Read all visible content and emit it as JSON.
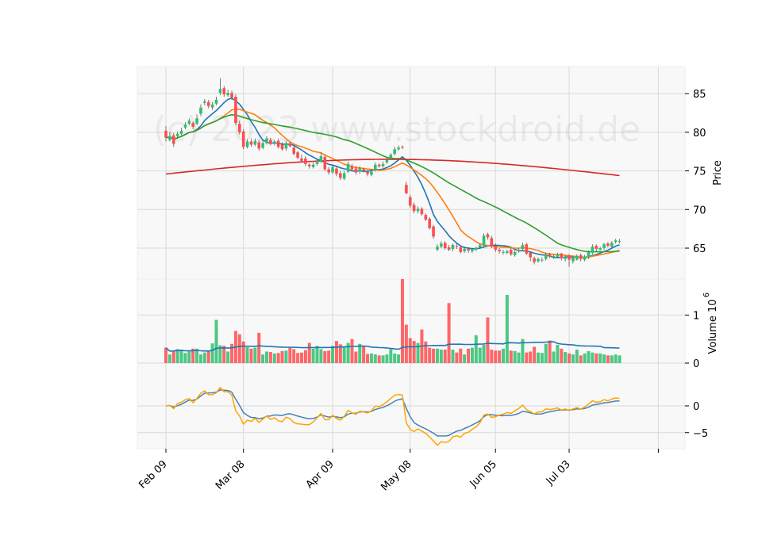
{
  "chart_data": {
    "type": "candlestick",
    "watermark": "(c) 2023 www.stockdroid.de",
    "price_axis": {
      "label": "Price",
      "ylim": [
        61,
        88.5
      ],
      "ticks": [
        65,
        70,
        75,
        80,
        85
      ]
    },
    "volume_axis": {
      "label": "Volume  10",
      "exponent": "6",
      "ylim": [
        0,
        1.75
      ],
      "ticks": [
        0,
        1
      ]
    },
    "indicator_axis": {
      "ylim": [
        -8,
        8
      ],
      "ticks": [
        -5,
        0
      ]
    },
    "x_ticks": [
      {
        "index": 0,
        "label": "Feb 09"
      },
      {
        "index": 20,
        "label": "Mar 08"
      },
      {
        "index": 43,
        "label": "Apr 09"
      },
      {
        "index": 63,
        "label": "May 08"
      },
      {
        "index": 85,
        "label": "Jun 05"
      },
      {
        "index": 104,
        "label": "Jul 03"
      },
      {
        "index": 127,
        "label": ""
      }
    ],
    "colors": {
      "up": "#2fbf71",
      "down": "#ff4d4f",
      "ma_fast": "#1f77b4",
      "ma_mid": "#ff7f0e",
      "ma_slow": "#2ca02c",
      "ma_long": "#d62728",
      "vol_ma": "#1f77b4",
      "ind_a": "#4682b4",
      "ind_b": "#ffa500",
      "panel_bg": "#f8f8f8",
      "grid": "#d9d9d9"
    },
    "closes": [
      79.3,
      79.5,
      78.5,
      79.8,
      80.2,
      81.0,
      81.5,
      80.7,
      81.8,
      83.2,
      84.0,
      83.4,
      83.6,
      84.2,
      85.6,
      84.9,
      85.1,
      84.5,
      81.2,
      80.0,
      78.1,
      78.8,
      78.4,
      78.9,
      77.9,
      78.6,
      79.2,
      78.5,
      78.8,
      78.1,
      77.8,
      78.6,
      78.2,
      77.2,
      76.7,
      76.3,
      75.9,
      75.6,
      75.8,
      76.3,
      76.9,
      75.2,
      74.8,
      75.5,
      74.6,
      74.1,
      74.7,
      75.9,
      75.2,
      74.8,
      75.3,
      75.0,
      74.6,
      74.9,
      75.8,
      75.6,
      75.9,
      76.4,
      77.1,
      77.8,
      78.0,
      78.0,
      72.1,
      70.5,
      69.8,
      70.1,
      69.4,
      68.7,
      67.6,
      66.5,
      65.2,
      65.6,
      65.0,
      64.8,
      65.4,
      65.2,
      64.5,
      64.9,
      64.7,
      64.9,
      65.0,
      65.4,
      66.6,
      66.4,
      65.2,
      64.8,
      64.6,
      64.5,
      64.6,
      64.2,
      64.5,
      64.8,
      65.4,
      64.3,
      63.8,
      63.2,
      63.6,
      63.5,
      64.1,
      63.9,
      64.0,
      64.2,
      63.7,
      63.9,
      63.5,
      63.8,
      64.0,
      63.6,
      63.9,
      64.5,
      65.2,
      64.9,
      65.0,
      65.5,
      65.3,
      65.7,
      66.0,
      65.9
    ],
    "opens": [
      80.2,
      79.0,
      79.6,
      79.5,
      79.8,
      80.6,
      81.1,
      81.2,
      81.1,
      82.4,
      83.8,
      83.9,
      83.2,
      83.7,
      85.1,
      85.7,
      84.8,
      85.1,
      84.6,
      81.1,
      80.1,
      78.1,
      78.8,
      78.4,
      78.7,
      78.0,
      78.6,
      79.0,
      78.6,
      78.9,
      78.4,
      77.9,
      78.5,
      78.0,
      77.4,
      76.6,
      76.6,
      75.8,
      75.5,
      75.9,
      76.2,
      76.8,
      75.2,
      74.8,
      75.3,
      74.7,
      74.0,
      74.9,
      75.6,
      75.3,
      74.9,
      75.2,
      74.9,
      74.5,
      75.1,
      75.8,
      75.6,
      76.1,
      76.6,
      77.2,
      77.8,
      78.1,
      73.2,
      71.6,
      70.6,
      69.8,
      70.1,
      69.3,
      68.8,
      67.8,
      64.8,
      65.2,
      65.7,
      65.1,
      64.9,
      65.3,
      65.1,
      64.6,
      64.9,
      64.6,
      64.8,
      65.1,
      65.3,
      66.8,
      66.3,
      65.3,
      64.8,
      64.5,
      64.4,
      64.8,
      64.1,
      64.6,
      64.9,
      65.5,
      64.4,
      63.7,
      63.3,
      63.5,
      63.6,
      64.2,
      63.8,
      63.9,
      64.3,
      63.6,
      64.0,
      63.3,
      63.5,
      64.1,
      63.5,
      63.8,
      64.4,
      65.3,
      64.8,
      65.0,
      65.6,
      65.2,
      65.8,
      65.8
    ],
    "highs": [
      80.8,
      80.0,
      79.9,
      80.1,
      80.6,
      81.3,
      81.8,
      81.4,
      82.3,
      83.6,
      84.3,
      84.2,
      83.9,
      84.6,
      87.0,
      86.0,
      85.5,
      85.4,
      84.9,
      81.5,
      80.4,
      79.1,
      79.2,
      79.2,
      79.0,
      78.9,
      79.5,
      79.3,
      79.0,
      79.2,
      78.7,
      78.9,
      78.8,
      78.3,
      77.6,
      77.1,
      76.9,
      76.0,
      76.1,
      76.6,
      77.4,
      77.1,
      75.5,
      75.8,
      75.6,
      75.0,
      75.0,
      76.2,
      75.9,
      75.6,
      75.6,
      75.4,
      75.1,
      75.2,
      76.1,
      76.0,
      76.2,
      76.7,
      77.3,
      78.1,
      78.3,
      78.3,
      73.6,
      71.9,
      70.9,
      70.4,
      70.3,
      69.5,
      69.0,
      68.0,
      65.5,
      65.9,
      65.9,
      65.4,
      65.6,
      65.6,
      65.3,
      65.2,
      65.1,
      65.0,
      65.2,
      65.6,
      66.9,
      67.0,
      66.6,
      65.6,
      65.0,
      64.8,
      64.8,
      65.0,
      64.7,
      65.0,
      65.7,
      65.7,
      64.6,
      63.9,
      63.8,
      63.8,
      64.4,
      64.4,
      64.2,
      64.4,
      64.4,
      64.1,
      64.2,
      63.9,
      64.2,
      64.3,
      64.1,
      64.7,
      65.5,
      65.5,
      65.2,
      65.7,
      65.8,
      65.9,
      66.2,
      66.2
    ],
    "lows": [
      78.8,
      78.8,
      78.1,
      79.3,
      79.6,
      80.4,
      80.9,
      80.4,
      80.9,
      82.1,
      83.5,
      83.1,
      82.9,
      83.5,
      84.8,
      84.6,
      84.6,
      84.2,
      80.9,
      79.7,
      77.8,
      77.9,
      78.1,
      78.2,
      77.6,
      77.8,
      78.4,
      78.3,
      78.3,
      77.9,
      77.6,
      77.6,
      78.0,
      77.0,
      76.5,
      76.1,
      75.6,
      75.3,
      75.3,
      75.7,
      76.0,
      75.0,
      74.5,
      74.6,
      74.3,
      73.8,
      73.8,
      74.7,
      75.0,
      74.5,
      74.6,
      74.8,
      74.3,
      74.3,
      74.9,
      75.4,
      75.4,
      75.9,
      76.5,
      77.0,
      77.6,
      77.8,
      72.0,
      70.2,
      69.5,
      69.5,
      69.2,
      68.5,
      67.4,
      66.2,
      64.6,
      65.0,
      64.8,
      64.6,
      64.6,
      64.9,
      64.3,
      64.4,
      64.4,
      64.4,
      64.6,
      64.9,
      65.1,
      66.1,
      65.0,
      64.5,
      64.3,
      64.2,
      64.2,
      64.0,
      63.9,
      64.4,
      64.7,
      64.1,
      63.3,
      62.9,
      63.1,
      63.2,
      63.4,
      63.7,
      63.6,
      63.7,
      63.4,
      63.3,
      62.6,
      63.0,
      63.4,
      63.3,
      63.3,
      63.6,
      64.2,
      64.6,
      64.7,
      64.8,
      65.1,
      65.0,
      65.6,
      65.6
    ],
    "volumes": [
      0.32,
      0.18,
      0.26,
      0.29,
      0.28,
      0.21,
      0.24,
      0.3,
      0.3,
      0.18,
      0.22,
      0.24,
      0.41,
      0.9,
      0.37,
      0.36,
      0.24,
      0.4,
      0.67,
      0.6,
      0.45,
      0.33,
      0.3,
      0.32,
      0.63,
      0.18,
      0.24,
      0.23,
      0.2,
      0.21,
      0.25,
      0.26,
      0.32,
      0.29,
      0.21,
      0.22,
      0.27,
      0.42,
      0.3,
      0.36,
      0.29,
      0.25,
      0.26,
      0.36,
      0.46,
      0.39,
      0.35,
      0.42,
      0.5,
      0.24,
      0.4,
      0.36,
      0.19,
      0.2,
      0.18,
      0.16,
      0.16,
      0.18,
      0.29,
      0.2,
      0.18,
      1.75,
      0.8,
      0.52,
      0.46,
      0.42,
      0.7,
      0.45,
      0.32,
      0.3,
      0.3,
      0.28,
      0.28,
      1.25,
      0.28,
      0.22,
      0.3,
      0.18,
      0.3,
      0.32,
      0.58,
      0.32,
      0.38,
      0.95,
      0.28,
      0.26,
      0.26,
      0.3,
      1.42,
      0.26,
      0.25,
      0.22,
      0.5,
      0.22,
      0.24,
      0.34,
      0.22,
      0.21,
      0.4,
      0.47,
      0.24,
      0.38,
      0.3,
      0.23,
      0.2,
      0.18,
      0.28,
      0.16,
      0.2,
      0.25,
      0.22,
      0.2,
      0.2,
      0.18,
      0.16,
      0.16,
      0.18,
      0.16
    ]
  }
}
